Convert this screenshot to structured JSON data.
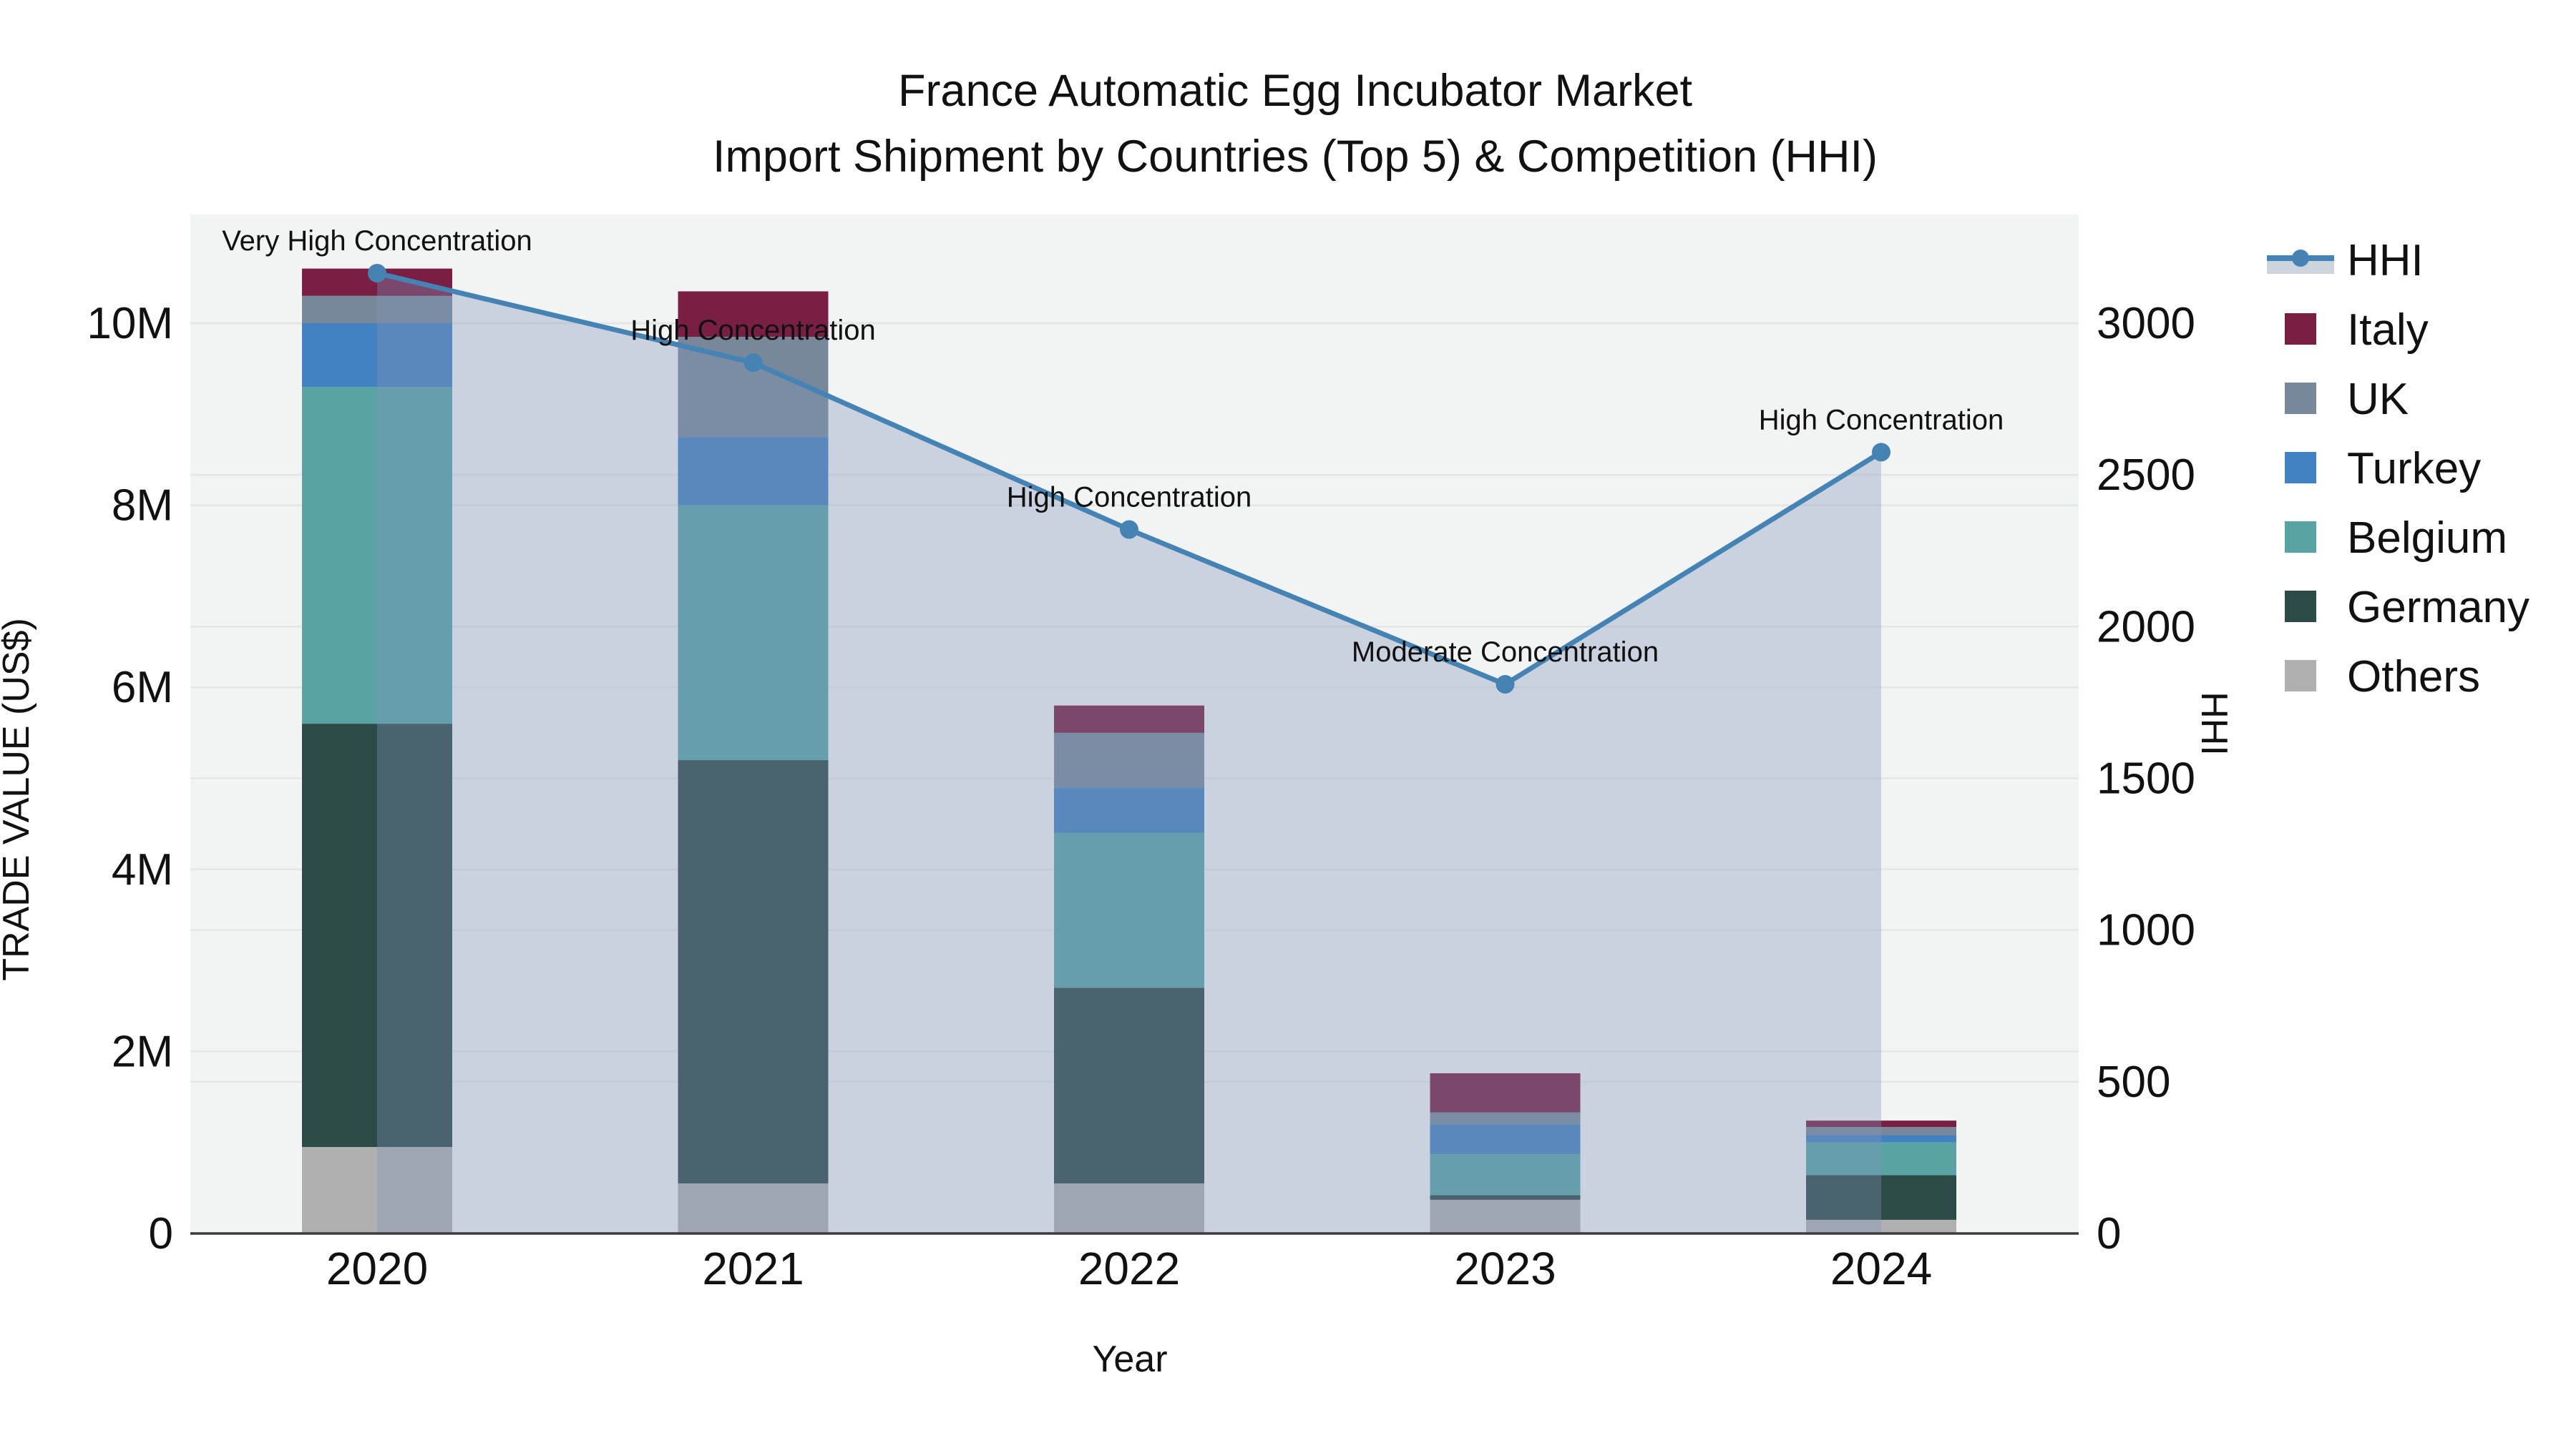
{
  "title": {
    "line1": "France Automatic Egg Incubator Market",
    "line2": "Import Shipment by Countries (Top 5) & Competition (HHI)"
  },
  "axes": {
    "x_title": "Year",
    "y_left_title": "TRADE VALUE (US$)",
    "y_right_title": "HHI",
    "x_ticks": [
      "2020",
      "2021",
      "2022",
      "2023",
      "2024"
    ],
    "y_left_ticks": [
      "0",
      "2M",
      "4M",
      "6M",
      "8M",
      "10M"
    ],
    "y_left_tick_values": [
      0,
      2,
      4,
      6,
      8,
      10
    ],
    "y_right_ticks": [
      "0",
      "500",
      "1000",
      "1500",
      "2000",
      "2500",
      "3000"
    ],
    "y_right_tick_values": [
      0,
      500,
      1000,
      1500,
      2000,
      2500,
      3000
    ]
  },
  "colors": {
    "plot_background": "#f2f3f3",
    "gridline": "#e3e6e8",
    "axis_line": "#3b3b3b",
    "hhi_line": "#4583b5",
    "hhi_area_fill": "rgba(130,150,185,0.35)",
    "legend_band_sample": "#ccd4dd",
    "text": "#111111"
  },
  "chart_data": {
    "type": "bar",
    "subtype": "stacked-bars-with-line-overlay",
    "categories": [
      "2020",
      "2021",
      "2022",
      "2023",
      "2024"
    ],
    "bar_value_unit": "million US$",
    "series": [
      {
        "name": "Others",
        "color": "#b0b0b0",
        "values": [
          0.95,
          0.55,
          0.55,
          0.37,
          0.15
        ]
      },
      {
        "name": "Germany",
        "color": "#2c4b47",
        "values": [
          4.65,
          4.65,
          2.15,
          0.05,
          0.49
        ]
      },
      {
        "name": "Belgium",
        "color": "#5aa3a4",
        "values": [
          3.7,
          2.8,
          1.7,
          0.45,
          0.36
        ]
      },
      {
        "name": "Turkey",
        "color": "#4282c0",
        "values": [
          0.7,
          0.75,
          0.5,
          0.33,
          0.08
        ]
      },
      {
        "name": "UK",
        "color": "#78879a",
        "values": [
          0.3,
          1.1,
          0.6,
          0.13,
          0.09
        ]
      },
      {
        "name": "Italy",
        "color": "#781f43",
        "values": [
          0.3,
          0.5,
          0.3,
          0.43,
          0.07
        ]
      }
    ],
    "line_series": {
      "name": "HHI",
      "color": "#4583b5",
      "values": [
        3165,
        2870,
        2320,
        1810,
        2575
      ],
      "annotations": [
        "Very High Concentration",
        "High Concentration",
        "High Concentration",
        "Moderate Concentration",
        "High Concentration"
      ]
    },
    "y_left_range": [
      0,
      11.2
    ],
    "y_right_range": [
      0,
      3360
    ],
    "grid": true,
    "legend_position": "right",
    "legend_order": [
      "HHI",
      "Italy",
      "UK",
      "Turkey",
      "Belgium",
      "Germany",
      "Others"
    ]
  }
}
